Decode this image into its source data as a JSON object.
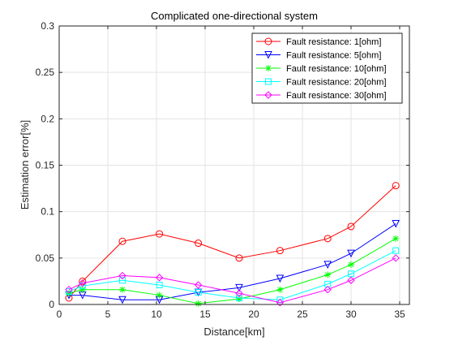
{
  "chart_data": {
    "type": "line",
    "title": "Complicated one-directional system",
    "xlabel": "Distance[km]",
    "ylabel": "Estimation error[%]",
    "xlim": [
      0,
      36
    ],
    "ylim": [
      0,
      0.3
    ],
    "xticks": [
      0,
      5,
      10,
      15,
      20,
      25,
      30,
      35
    ],
    "yticks": [
      0,
      0.05,
      0.1,
      0.15,
      0.2,
      0.25,
      0.3
    ],
    "ytick_labels": [
      "0",
      "0.05",
      "0.1",
      "0.15",
      "0.2",
      "0.25",
      "0.3"
    ],
    "grid": true,
    "legend_position": "top-right",
    "series": [
      {
        "name": "Fault resistance: 1[ohm]",
        "color": "#ff0000",
        "marker": "circle",
        "x": [
          1,
          2.4,
          6.5,
          10.3,
          14.3,
          18.5,
          22.7,
          27.6,
          30,
          34.6
        ],
        "y": [
          0.007,
          0.025,
          0.068,
          0.076,
          0.066,
          0.05,
          0.058,
          0.071,
          0.084,
          0.128
        ]
      },
      {
        "name": "Fault resistance: 5[ohm]",
        "color": "#0000ff",
        "marker": "triangle-down",
        "x": [
          1,
          2.4,
          6.5,
          10.3,
          14.3,
          18.5,
          22.7,
          27.6,
          30,
          34.6
        ],
        "y": [
          0.01,
          0.01,
          0.005,
          0.005,
          0.013,
          0.018,
          0.028,
          0.043,
          0.055,
          0.087
        ]
      },
      {
        "name": "Fault resistance: 10[ohm]",
        "color": "#00ff00",
        "marker": "asterisk",
        "x": [
          1,
          2.4,
          6.5,
          10.3,
          14.3,
          18.5,
          22.7,
          27.6,
          30,
          34.6
        ],
        "y": [
          0.012,
          0.016,
          0.016,
          0.01,
          0.001,
          0.006,
          0.016,
          0.032,
          0.043,
          0.071
        ]
      },
      {
        "name": "Fault resistance: 20[ohm]",
        "color": "#00ffff",
        "marker": "square",
        "x": [
          1,
          2.4,
          6.5,
          10.3,
          14.3,
          18.5,
          22.7,
          27.6,
          30,
          34.6
        ],
        "y": [
          0.014,
          0.02,
          0.026,
          0.021,
          0.013,
          0.007,
          0.005,
          0.022,
          0.033,
          0.058
        ]
      },
      {
        "name": "Fault resistance: 30[ohm]",
        "color": "#ff00ff",
        "marker": "diamond",
        "x": [
          1,
          2.4,
          6.5,
          10.3,
          14.3,
          18.5,
          22.7,
          27.6,
          30,
          34.6
        ],
        "y": [
          0.016,
          0.023,
          0.031,
          0.029,
          0.021,
          0.012,
          0.002,
          0.016,
          0.026,
          0.05
        ]
      }
    ]
  }
}
